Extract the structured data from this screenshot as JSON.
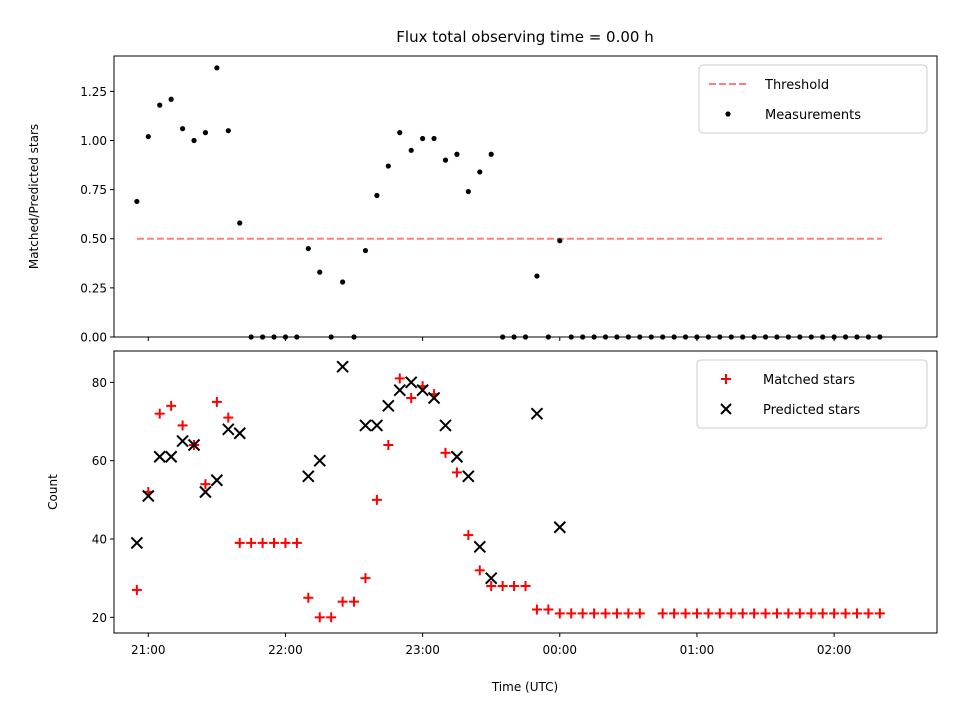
{
  "chart_data": [
    {
      "type": "scatter",
      "panel": "top",
      "title": "Flux total observing time = 0.00 h",
      "xlabel": "",
      "ylabel": "Matched/Predicted stars",
      "xlim": [
        "20:45",
        "02:45"
      ],
      "ylim": [
        0,
        1.43
      ],
      "yticks": [
        0.0,
        0.25,
        0.5,
        0.75,
        1.0,
        1.25
      ],
      "ytick_labels": [
        "0.00",
        "0.25",
        "0.50",
        "0.75",
        "1.00",
        "1.25"
      ],
      "legend_position": "upper right",
      "threshold": {
        "name": "Threshold",
        "color": "#ff7f7f",
        "y": 0.5,
        "x_start": "20:55",
        "x_end": "02:21"
      },
      "series": [
        {
          "name": "Measurements",
          "color": "#000000",
          "marker": "dot",
          "points": [
            {
              "x": "20:55",
              "y": 0.69
            },
            {
              "x": "21:00",
              "y": 1.02
            },
            {
              "x": "21:05",
              "y": 1.18
            },
            {
              "x": "21:10",
              "y": 1.21
            },
            {
              "x": "21:15",
              "y": 1.06
            },
            {
              "x": "21:20",
              "y": 1.0
            },
            {
              "x": "21:25",
              "y": 1.04
            },
            {
              "x": "21:30",
              "y": 1.37
            },
            {
              "x": "21:35",
              "y": 1.05
            },
            {
              "x": "21:40",
              "y": 0.58
            },
            {
              "x": "21:45",
              "y": 0.0
            },
            {
              "x": "21:50",
              "y": 0.0
            },
            {
              "x": "21:55",
              "y": 0.0
            },
            {
              "x": "22:00",
              "y": 0.0
            },
            {
              "x": "22:05",
              "y": 0.0
            },
            {
              "x": "22:10",
              "y": 0.45
            },
            {
              "x": "22:15",
              "y": 0.33
            },
            {
              "x": "22:20",
              "y": 0.0
            },
            {
              "x": "22:25",
              "y": 0.28
            },
            {
              "x": "22:30",
              "y": 0.0
            },
            {
              "x": "22:35",
              "y": 0.44
            },
            {
              "x": "22:40",
              "y": 0.72
            },
            {
              "x": "22:45",
              "y": 0.87
            },
            {
              "x": "22:50",
              "y": 1.04
            },
            {
              "x": "22:55",
              "y": 0.95
            },
            {
              "x": "23:00",
              "y": 1.01
            },
            {
              "x": "23:05",
              "y": 1.01
            },
            {
              "x": "23:10",
              "y": 0.9
            },
            {
              "x": "23:15",
              "y": 0.93
            },
            {
              "x": "23:20",
              "y": 0.74
            },
            {
              "x": "23:25",
              "y": 0.84
            },
            {
              "x": "23:30",
              "y": 0.93
            },
            {
              "x": "23:35",
              "y": 0.0
            },
            {
              "x": "23:40",
              "y": 0.0
            },
            {
              "x": "23:45",
              "y": 0.0
            },
            {
              "x": "23:50",
              "y": 0.31
            },
            {
              "x": "23:55",
              "y": 0.0
            },
            {
              "x": "00:00",
              "y": 0.49
            },
            {
              "x": "00:05",
              "y": 0.0
            },
            {
              "x": "00:10",
              "y": 0.0
            },
            {
              "x": "00:15",
              "y": 0.0
            },
            {
              "x": "00:20",
              "y": 0.0
            },
            {
              "x": "00:25",
              "y": 0.0
            },
            {
              "x": "00:30",
              "y": 0.0
            },
            {
              "x": "00:35",
              "y": 0.0
            },
            {
              "x": "00:40",
              "y": 0.0
            },
            {
              "x": "00:45",
              "y": 0.0
            },
            {
              "x": "00:50",
              "y": 0.0
            },
            {
              "x": "00:55",
              "y": 0.0
            },
            {
              "x": "01:00",
              "y": 0.0
            },
            {
              "x": "01:05",
              "y": 0.0
            },
            {
              "x": "01:10",
              "y": 0.0
            },
            {
              "x": "01:15",
              "y": 0.0
            },
            {
              "x": "01:20",
              "y": 0.0
            },
            {
              "x": "01:25",
              "y": 0.0
            },
            {
              "x": "01:30",
              "y": 0.0
            },
            {
              "x": "01:35",
              "y": 0.0
            },
            {
              "x": "01:40",
              "y": 0.0
            },
            {
              "x": "01:45",
              "y": 0.0
            },
            {
              "x": "01:50",
              "y": 0.0
            },
            {
              "x": "01:55",
              "y": 0.0
            },
            {
              "x": "02:00",
              "y": 0.0
            },
            {
              "x": "02:05",
              "y": 0.0
            },
            {
              "x": "02:10",
              "y": 0.0
            },
            {
              "x": "02:15",
              "y": 0.0
            },
            {
              "x": "02:20",
              "y": 0.0
            }
          ]
        }
      ]
    },
    {
      "type": "scatter",
      "panel": "bottom",
      "title": "",
      "xlabel": "Time (UTC)",
      "ylabel": "Count",
      "xlim": [
        "20:45",
        "02:45"
      ],
      "ylim": [
        16,
        88
      ],
      "xticks": [
        "21:00",
        "22:00",
        "23:00",
        "00:00",
        "01:00",
        "02:00"
      ],
      "yticks": [
        20,
        40,
        60,
        80
      ],
      "ytick_labels": [
        "20",
        "40",
        "60",
        "80"
      ],
      "legend_position": "upper right",
      "series": [
        {
          "name": "Matched stars",
          "color": "#ff0000",
          "marker": "plus",
          "points": [
            {
              "x": "20:55",
              "y": 27
            },
            {
              "x": "21:00",
              "y": 52
            },
            {
              "x": "21:05",
              "y": 72
            },
            {
              "x": "21:10",
              "y": 74
            },
            {
              "x": "21:15",
              "y": 69
            },
            {
              "x": "21:20",
              "y": 64
            },
            {
              "x": "21:25",
              "y": 54
            },
            {
              "x": "21:30",
              "y": 75
            },
            {
              "x": "21:35",
              "y": 71
            },
            {
              "x": "21:40",
              "y": 39
            },
            {
              "x": "21:45",
              "y": 39
            },
            {
              "x": "21:50",
              "y": 39
            },
            {
              "x": "21:55",
              "y": 39
            },
            {
              "x": "22:00",
              "y": 39
            },
            {
              "x": "22:05",
              "y": 39
            },
            {
              "x": "22:10",
              "y": 25
            },
            {
              "x": "22:15",
              "y": 20
            },
            {
              "x": "22:20",
              "y": 20
            },
            {
              "x": "22:25",
              "y": 24
            },
            {
              "x": "22:30",
              "y": 24
            },
            {
              "x": "22:35",
              "y": 30
            },
            {
              "x": "22:40",
              "y": 50
            },
            {
              "x": "22:45",
              "y": 64
            },
            {
              "x": "22:50",
              "y": 81
            },
            {
              "x": "22:55",
              "y": 76
            },
            {
              "x": "23:00",
              "y": 79
            },
            {
              "x": "23:05",
              "y": 77
            },
            {
              "x": "23:10",
              "y": 62
            },
            {
              "x": "23:15",
              "y": 57
            },
            {
              "x": "23:20",
              "y": 41
            },
            {
              "x": "23:25",
              "y": 32
            },
            {
              "x": "23:30",
              "y": 28
            },
            {
              "x": "23:35",
              "y": 28
            },
            {
              "x": "23:40",
              "y": 28
            },
            {
              "x": "23:45",
              "y": 28
            },
            {
              "x": "23:50",
              "y": 22
            },
            {
              "x": "23:55",
              "y": 22
            },
            {
              "x": "00:00",
              "y": 21
            },
            {
              "x": "00:05",
              "y": 21
            },
            {
              "x": "00:10",
              "y": 21
            },
            {
              "x": "00:15",
              "y": 21
            },
            {
              "x": "00:20",
              "y": 21
            },
            {
              "x": "00:25",
              "y": 21
            },
            {
              "x": "00:30",
              "y": 21
            },
            {
              "x": "00:35",
              "y": 21
            },
            {
              "x": "00:45",
              "y": 21
            },
            {
              "x": "00:50",
              "y": 21
            },
            {
              "x": "00:55",
              "y": 21
            },
            {
              "x": "01:00",
              "y": 21
            },
            {
              "x": "01:05",
              "y": 21
            },
            {
              "x": "01:10",
              "y": 21
            },
            {
              "x": "01:15",
              "y": 21
            },
            {
              "x": "01:20",
              "y": 21
            },
            {
              "x": "01:25",
              "y": 21
            },
            {
              "x": "01:30",
              "y": 21
            },
            {
              "x": "01:35",
              "y": 21
            },
            {
              "x": "01:40",
              "y": 21
            },
            {
              "x": "01:45",
              "y": 21
            },
            {
              "x": "01:50",
              "y": 21
            },
            {
              "x": "01:55",
              "y": 21
            },
            {
              "x": "02:00",
              "y": 21
            },
            {
              "x": "02:05",
              "y": 21
            },
            {
              "x": "02:10",
              "y": 21
            },
            {
              "x": "02:15",
              "y": 21
            },
            {
              "x": "02:20",
              "y": 21
            }
          ]
        },
        {
          "name": "Predicted stars",
          "color": "#000000",
          "marker": "x",
          "points": [
            {
              "x": "20:55",
              "y": 39
            },
            {
              "x": "21:00",
              "y": 51
            },
            {
              "x": "21:05",
              "y": 61
            },
            {
              "x": "21:10",
              "y": 61
            },
            {
              "x": "21:15",
              "y": 65
            },
            {
              "x": "21:20",
              "y": 64
            },
            {
              "x": "21:25",
              "y": 52
            },
            {
              "x": "21:30",
              "y": 55
            },
            {
              "x": "21:35",
              "y": 68
            },
            {
              "x": "21:40",
              "y": 67
            },
            {
              "x": "22:10",
              "y": 56
            },
            {
              "x": "22:15",
              "y": 60
            },
            {
              "x": "22:25",
              "y": 84
            },
            {
              "x": "22:35",
              "y": 69
            },
            {
              "x": "22:40",
              "y": 69
            },
            {
              "x": "22:45",
              "y": 74
            },
            {
              "x": "22:50",
              "y": 78
            },
            {
              "x": "22:55",
              "y": 80
            },
            {
              "x": "23:00",
              "y": 78
            },
            {
              "x": "23:05",
              "y": 76
            },
            {
              "x": "23:10",
              "y": 69
            },
            {
              "x": "23:15",
              "y": 61
            },
            {
              "x": "23:20",
              "y": 56
            },
            {
              "x": "23:25",
              "y": 38
            },
            {
              "x": "23:30",
              "y": 30
            },
            {
              "x": "23:50",
              "y": 72
            },
            {
              "x": "00:00",
              "y": 43
            }
          ]
        }
      ]
    }
  ]
}
